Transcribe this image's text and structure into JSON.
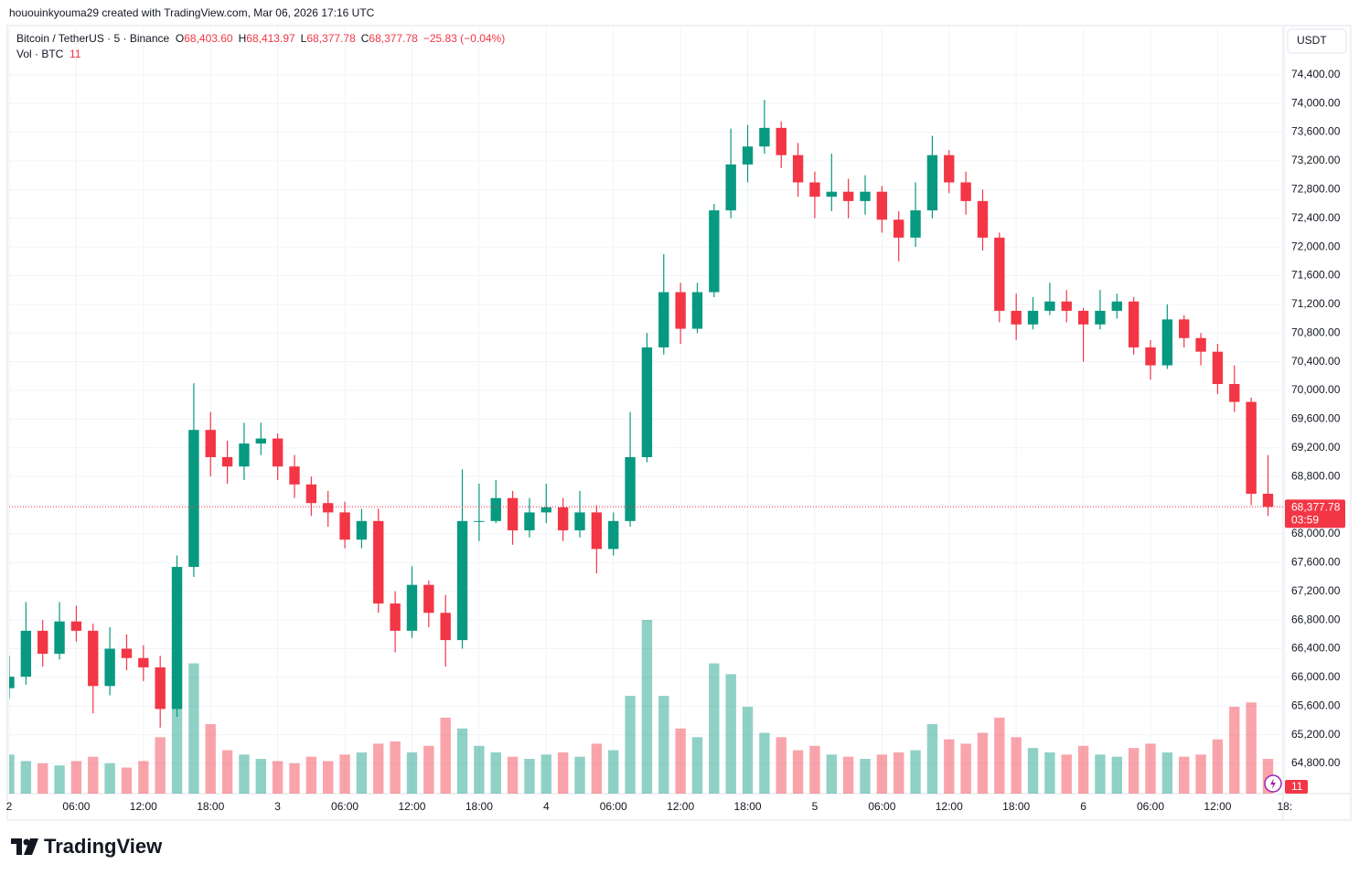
{
  "header": {
    "attribution": "hououinkyouma29 created with TradingView.com, Mar 06, 2026 17:16 UTC"
  },
  "chart_data": {
    "type": "candlestick",
    "symbol": "Bitcoin / TetherUS · 5 · Binance",
    "ohlc_legend": [
      {
        "label": "O",
        "value": "68,403.60"
      },
      {
        "label": "H",
        "value": "68,413.97"
      },
      {
        "label": "L",
        "value": "68,377.78"
      },
      {
        "label": "C",
        "value": "68,377.78"
      }
    ],
    "change": "−25.83 (−0.04%)",
    "volume_label": "Vol · BTC",
    "last_volume": 11,
    "currency": "USDT",
    "last_price": {
      "value": 68377.78,
      "label": "68,377.78"
    },
    "countdown": "03:59",
    "up_color": "#089981",
    "down_color": "#f23645",
    "grid": true,
    "x": [
      "2",
      null,
      null,
      null,
      "06:00",
      null,
      null,
      null,
      "12:00",
      null,
      null,
      null,
      "18:00",
      null,
      null,
      null,
      "3",
      null,
      null,
      null,
      "06:00",
      null,
      null,
      null,
      "12:00",
      null,
      null,
      null,
      "18:00",
      null,
      null,
      null,
      "4",
      null,
      null,
      null,
      "06:00",
      null,
      null,
      null,
      "12:00",
      null,
      null,
      null,
      "18:00",
      null,
      null,
      null,
      "5",
      null,
      null,
      null,
      "06:00",
      null,
      null,
      null,
      "12:00",
      null,
      null,
      null,
      "18:00",
      null,
      null,
      null,
      "6",
      null,
      null,
      null,
      "06:00",
      null,
      null,
      null,
      "12:00",
      null,
      null,
      null,
      "18:"
    ],
    "open": [
      65850,
      66010,
      66650,
      66330,
      66780,
      66650,
      65880,
      66400,
      66270,
      66140,
      65560,
      67540,
      69450,
      69070,
      68940,
      69260,
      69330,
      68940,
      68690,
      68430,
      68300,
      67920,
      68180,
      67030,
      66650,
      67290,
      66900,
      66520,
      68180,
      68180,
      68500,
      68050,
      68300,
      68370,
      68050,
      68300,
      67790,
      68180,
      69070,
      70600,
      71370,
      70860,
      71370,
      72510,
      73150,
      73400,
      73660,
      73280,
      72900,
      72700,
      72770,
      72640,
      72770,
      72380,
      72130,
      72510,
      73280,
      72900,
      72640,
      72130,
      71110,
      70920,
      71110,
      71240,
      71110,
      70920,
      71110,
      71240,
      70600,
      70350,
      70990,
      70730,
      70540,
      70090,
      69840,
      68560,
      null
    ],
    "high": [
      66300,
      67050,
      66800,
      67050,
      67000,
      66750,
      66700,
      66600,
      66450,
      66300,
      67700,
      70100,
      69700,
      69300,
      69550,
      69550,
      69400,
      69100,
      68800,
      68600,
      68450,
      68350,
      68350,
      67200,
      67550,
      67350,
      67150,
      68900,
      68700,
      68750,
      68600,
      68500,
      68700,
      68500,
      68600,
      68400,
      68300,
      69700,
      70800,
      71900,
      71500,
      71500,
      72600,
      73650,
      73700,
      74050,
      73750,
      73450,
      73050,
      73300,
      72950,
      73000,
      72850,
      72500,
      72900,
      73550,
      73350,
      73050,
      72800,
      72200,
      71350,
      71300,
      71500,
      71400,
      71150,
      71400,
      71350,
      71300,
      70700,
      71200,
      71050,
      70800,
      70650,
      70350,
      69900,
      69100,
      null
    ],
    "low": [
      65700,
      65900,
      66150,
      66250,
      66500,
      65500,
      65750,
      66100,
      65950,
      65300,
      65450,
      67400,
      68800,
      68700,
      68750,
      69100,
      68750,
      68500,
      68250,
      68100,
      67800,
      67800,
      66900,
      66350,
      66550,
      66700,
      66150,
      66400,
      67900,
      68150,
      67850,
      67950,
      68150,
      67900,
      67950,
      67450,
      67700,
      68100,
      69000,
      70500,
      70650,
      70800,
      71300,
      72400,
      72900,
      73300,
      73100,
      72700,
      72400,
      72500,
      72400,
      72450,
      72200,
      71800,
      72000,
      72400,
      72750,
      72450,
      71950,
      70950,
      70700,
      70850,
      71050,
      70950,
      70400,
      70850,
      71000,
      70500,
      70150,
      70300,
      70600,
      70350,
      69950,
      69700,
      68400,
      68250,
      null
    ],
    "close": [
      66010,
      66650,
      66330,
      66780,
      66650,
      65880,
      66400,
      66270,
      66140,
      65560,
      67540,
      69450,
      69070,
      68940,
      69260,
      69330,
      68940,
      68690,
      68430,
      68300,
      67920,
      68180,
      67030,
      66650,
      67290,
      66900,
      66520,
      68180,
      68180,
      68500,
      68050,
      68300,
      68370,
      68050,
      68300,
      67790,
      68180,
      69070,
      70600,
      71370,
      70860,
      71370,
      72510,
      73150,
      73400,
      73660,
      73280,
      72900,
      72700,
      72770,
      72640,
      72770,
      72380,
      72130,
      72510,
      73280,
      72900,
      72640,
      72130,
      71110,
      70920,
      71110,
      71240,
      71110,
      70920,
      71110,
      71240,
      70600,
      70350,
      70990,
      70730,
      70540,
      70090,
      69840,
      68560,
      68377.78,
      null
    ],
    "volume": [
      1800,
      1500,
      1400,
      1300,
      1500,
      1700,
      1400,
      1200,
      1500,
      2600,
      6500,
      6000,
      3200,
      2000,
      1800,
      1600,
      1500,
      1400,
      1700,
      1500,
      1800,
      1900,
      2300,
      2400,
      1900,
      2200,
      3500,
      3000,
      2200,
      1900,
      1700,
      1600,
      1800,
      1900,
      1700,
      2300,
      2000,
      4500,
      8000,
      4500,
      3000,
      2600,
      6000,
      5500,
      4000,
      2800,
      2600,
      2000,
      2200,
      1800,
      1700,
      1600,
      1800,
      1900,
      2000,
      3200,
      2500,
      2300,
      2800,
      3500,
      2600,
      2100,
      1900,
      1800,
      2200,
      1800,
      1700,
      2100,
      2300,
      1900,
      1700,
      1800,
      2500,
      4000,
      4200,
      1600,
      null
    ],
    "ylim": [
      64380,
      75060
    ],
    "yticks": [
      {
        "value": 64800,
        "label": "64,800.00"
      },
      {
        "value": 65200,
        "label": "65,200.00"
      },
      {
        "value": 65600,
        "label": "65,600.00"
      },
      {
        "value": 66000,
        "label": "66,000.00"
      },
      {
        "value": 66400,
        "label": "66,400.00"
      },
      {
        "value": 66800,
        "label": "66,800.00"
      },
      {
        "value": 67200,
        "label": "67,200.00"
      },
      {
        "value": 67600,
        "label": "67,600.00"
      },
      {
        "value": 68000,
        "label": "68,000.00"
      },
      {
        "value": 68400,
        "label": "68,400.00"
      },
      {
        "value": 68800,
        "label": "68,800.00"
      },
      {
        "value": 69200,
        "label": "69,200.00"
      },
      {
        "value": 69600,
        "label": "69,600.00"
      },
      {
        "value": 70000,
        "label": "70,000.00"
      },
      {
        "value": 70400,
        "label": "70,400.00"
      },
      {
        "value": 70800,
        "label": "70,800.00"
      },
      {
        "value": 71200,
        "label": "71,200.00"
      },
      {
        "value": 71600,
        "label": "71,600.00"
      },
      {
        "value": 72000,
        "label": "72,000.00"
      },
      {
        "value": 72400,
        "label": "72,400.00"
      },
      {
        "value": 72800,
        "label": "72,800.00"
      },
      {
        "value": 73200,
        "label": "73,200.00"
      },
      {
        "value": 73600,
        "label": "73,600.00"
      },
      {
        "value": 74000,
        "label": "74,000.00"
      },
      {
        "value": 74400,
        "label": "74,400.00"
      }
    ]
  },
  "footer": {
    "logo": "TradingView"
  }
}
